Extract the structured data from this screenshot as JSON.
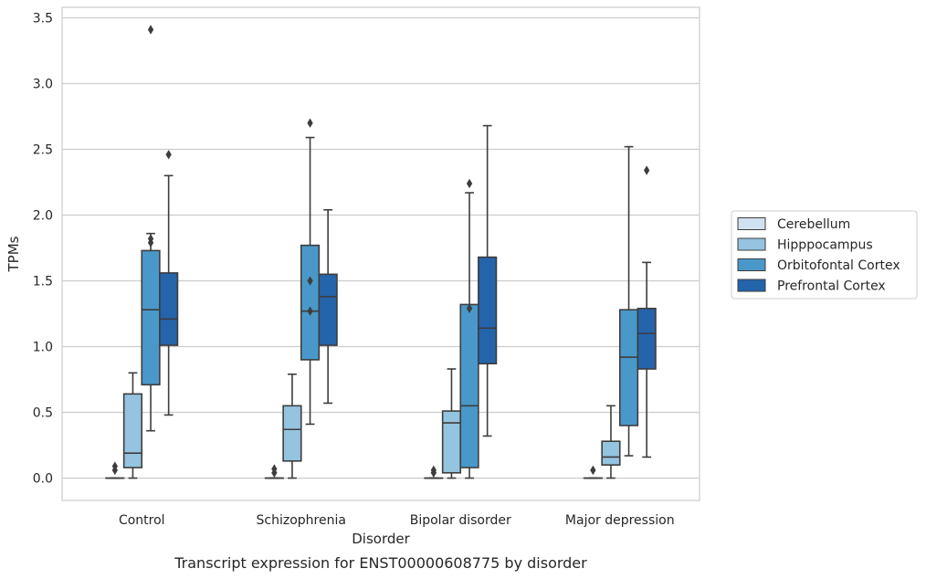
{
  "caption": "Transcript expression for ENST00000608775 by disorder",
  "chart_data": {
    "type": "box",
    "xlabel": "Disorder",
    "ylabel": "TPMs",
    "ylim": [
      -0.17,
      3.58
    ],
    "yticks": [
      0.0,
      0.5,
      1.0,
      1.5,
      2.0,
      2.5,
      3.0,
      3.5
    ],
    "ytick_labels": [
      "0.0",
      "0.5",
      "1.0",
      "1.5",
      "2.0",
      "2.5",
      "3.0",
      "3.5"
    ],
    "grid": "horizontal",
    "legend_position": "right",
    "categories": [
      "Control",
      "Schizophrenia",
      "Bipolar disorder",
      "Major depression"
    ],
    "series": [
      {
        "name": "Cerebellum",
        "color": "#d0e1f2",
        "boxes": [
          {
            "min": 0.0,
            "q1": 0.0,
            "median": 0.0,
            "q3": 0.0,
            "max": 0.0,
            "outliers": [
              0.06,
              0.09
            ]
          },
          {
            "min": 0.0,
            "q1": 0.0,
            "median": 0.0,
            "q3": 0.0,
            "max": 0.0,
            "outliers": [
              0.04,
              0.07
            ]
          },
          {
            "min": 0.0,
            "q1": 0.0,
            "median": 0.0,
            "q3": 0.0,
            "max": 0.0,
            "outliers": [
              0.04,
              0.06
            ]
          },
          {
            "min": 0.0,
            "q1": 0.0,
            "median": 0.0,
            "q3": 0.0,
            "max": 0.0,
            "outliers": [
              0.06
            ]
          }
        ]
      },
      {
        "name": "Hipppocampus",
        "color": "#94c4df",
        "boxes": [
          {
            "min": 0.0,
            "q1": 0.08,
            "median": 0.19,
            "q3": 0.64,
            "max": 0.8,
            "outliers": []
          },
          {
            "min": 0.0,
            "q1": 0.13,
            "median": 0.37,
            "q3": 0.55,
            "max": 0.79,
            "outliers": []
          },
          {
            "min": 0.0,
            "q1": 0.04,
            "median": 0.42,
            "q3": 0.51,
            "max": 0.83,
            "outliers": []
          },
          {
            "min": 0.0,
            "q1": 0.1,
            "median": 0.16,
            "q3": 0.28,
            "max": 0.55,
            "outliers": []
          }
        ]
      },
      {
        "name": "Orbitofontal Cortex",
        "color": "#4a98c9",
        "boxes": [
          {
            "min": 0.36,
            "q1": 0.71,
            "median": 1.28,
            "q3": 1.73,
            "max": 1.86,
            "outliers": [
              1.79,
              1.82,
              3.41
            ]
          },
          {
            "min": 0.41,
            "q1": 0.9,
            "median": 1.27,
            "q3": 1.77,
            "max": 2.59,
            "outliers": [
              1.27,
              1.5,
              2.7
            ]
          },
          {
            "min": 0.0,
            "q1": 0.08,
            "median": 0.55,
            "q3": 1.32,
            "max": 2.17,
            "outliers": [
              1.29,
              2.24
            ]
          },
          {
            "min": 0.17,
            "q1": 0.4,
            "median": 0.92,
            "q3": 1.28,
            "max": 2.52,
            "outliers": []
          }
        ]
      },
      {
        "name": "Prefrontal Cortex",
        "color": "#2464ab",
        "boxes": [
          {
            "min": 0.48,
            "q1": 1.01,
            "median": 1.21,
            "q3": 1.56,
            "max": 2.3,
            "outliers": [
              2.46
            ]
          },
          {
            "min": 0.57,
            "q1": 1.01,
            "median": 1.38,
            "q3": 1.55,
            "max": 2.04,
            "outliers": []
          },
          {
            "min": 0.32,
            "q1": 0.87,
            "median": 1.14,
            "q3": 1.68,
            "max": 2.68,
            "outliers": []
          },
          {
            "min": 0.16,
            "q1": 0.83,
            "median": 1.1,
            "q3": 1.29,
            "max": 1.64,
            "outliers": [
              2.34
            ]
          }
        ]
      }
    ]
  }
}
